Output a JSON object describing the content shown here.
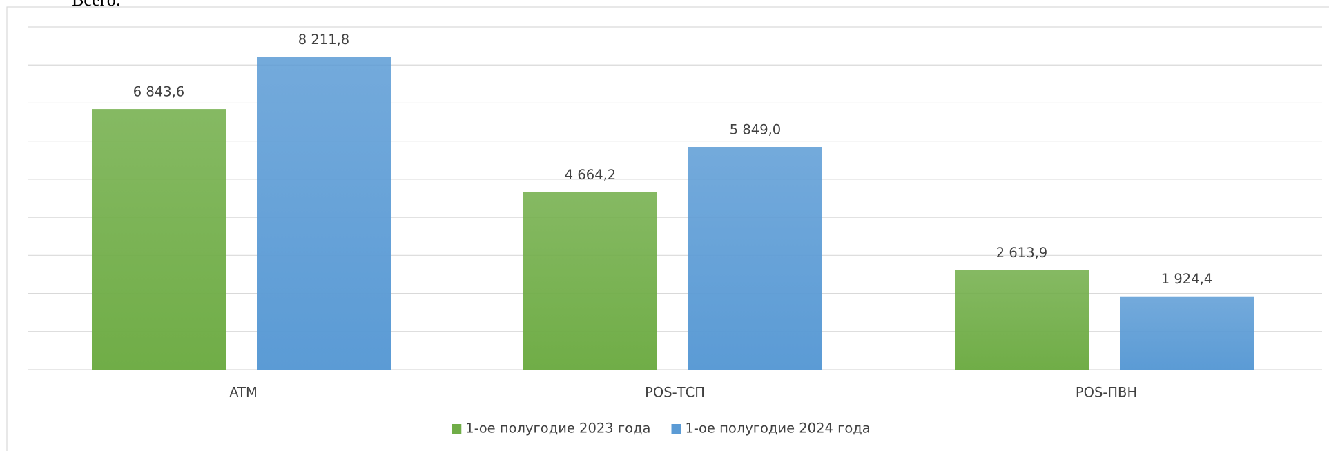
{
  "heading": "Всего:",
  "chart_data": {
    "type": "bar",
    "categories": [
      "ATM",
      "POS-ТСП",
      "POS-ПВН"
    ],
    "series": [
      {
        "name": "1-ое полугодие 2023 года",
        "color": "#70ad47",
        "values": [
          6843.6,
          4664.2,
          2613.9
        ],
        "value_labels": [
          "6 843,6",
          "4 664,2",
          "2 613,9"
        ]
      },
      {
        "name": "1-ое полугодие 2024 года",
        "color": "#5b9bd5",
        "values": [
          8211.8,
          5849.0,
          1924.4
        ],
        "value_labels": [
          "8 211,8",
          "5 849,0",
          "1 924,4"
        ]
      }
    ],
    "ylim": [
      0,
      9000
    ],
    "yticks": [
      0,
      1000,
      2000,
      3000,
      4000,
      5000,
      6000,
      7000,
      8000,
      9000
    ],
    "ytick_labels": false,
    "grid": true,
    "legend": "bottom"
  }
}
